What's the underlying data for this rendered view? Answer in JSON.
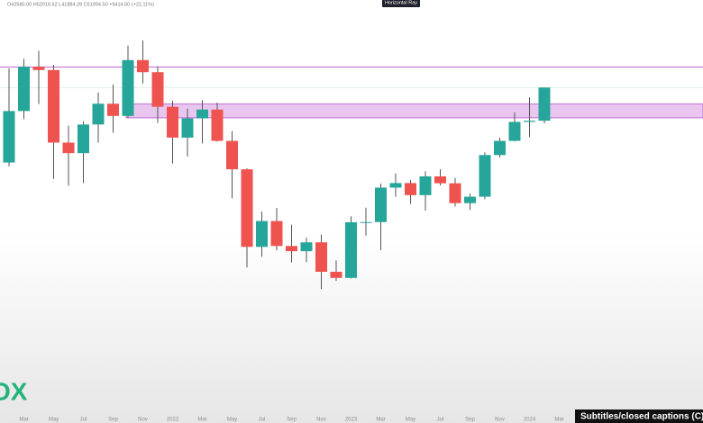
{
  "chart_data": {
    "type": "candlestick",
    "ohlc_header": "O42580.00 H52016.62 L41884.28 C51994.50 +9414.50 (+22.11%)",
    "categories": [
      null,
      "Mar",
      null,
      "May",
      null,
      "Jul",
      null,
      "Sep",
      null,
      "Nov",
      null,
      "2022",
      null,
      "Mar",
      null,
      "May",
      null,
      "Jul",
      null,
      "Sep",
      null,
      "Nov",
      null,
      "2023",
      null,
      "Mar",
      null,
      "May",
      null,
      "Jul",
      null,
      "Sep",
      null,
      "Nov",
      null,
      "2024",
      null,
      "Mar"
    ],
    "open": [
      33114,
      45137,
      58918,
      57750,
      37332,
      35040,
      41626,
      47167,
      43824,
      61318,
      57005,
      46306,
      38467,
      43194,
      45538,
      37714,
      31792,
      19942,
      23293,
      20050,
      19432,
      20495,
      17168,
      16548,
      23125,
      23147,
      28478,
      29268,
      27219,
      30477,
      29233,
      25940,
      26963,
      34639,
      37723,
      42284,
      42580,
      null
    ],
    "high": [
      58330,
      61788,
      64854,
      59520,
      41330,
      42448,
      50482,
      52920,
      66930,
      69000,
      59041,
      47990,
      45821,
      48190,
      47444,
      40023,
      31975,
      24668,
      25211,
      22799,
      21085,
      21480,
      18388,
      23960,
      25250,
      29185,
      31000,
      29820,
      31431,
      31818,
      30176,
      27483,
      35198,
      38448,
      44748,
      48970,
      52016.62,
      null
    ],
    "low": [
      32384,
      43001,
      47044,
      30000,
      28805,
      29278,
      37332,
      39600,
      43283,
      53256,
      42000,
      32917,
      34322,
      37155,
      37578,
      26700,
      17622,
      18782,
      19520,
      18153,
      18190,
      15476,
      16256,
      16499,
      21351,
      19549,
      26942,
      25811,
      24797,
      28862,
      25409,
      24901,
      26560,
      34100,
      37629,
      38555,
      41884.28,
      null
    ],
    "close": [
      45137,
      58918,
      57750,
      37332,
      35040,
      41626,
      47167,
      43824,
      61318,
      57005,
      46306,
      38467,
      43194,
      45538,
      37714,
      31792,
      19942,
      23293,
      20050,
      19432,
      20495,
      17168,
      16548,
      23125,
      23147,
      28478,
      29268,
      27219,
      30477,
      29233,
      25940,
      26963,
      34639,
      37723,
      42284,
      42580,
      51994.5,
      null
    ],
    "up_color": "#26a69a",
    "down_color": "#ef5350",
    "ylim": [
      7300,
      88000
    ],
    "log_scale": true,
    "ray_level": 58800,
    "ray_color": "#c77fd6",
    "zone": [
      43350,
      47100
    ],
    "zone_color": "#e9c6f0",
    "last_price_line": 51994.5
  },
  "tooltip": "Horizontal Ray",
  "logo": "OX",
  "captions": "Subtitles/closed captions (C)"
}
